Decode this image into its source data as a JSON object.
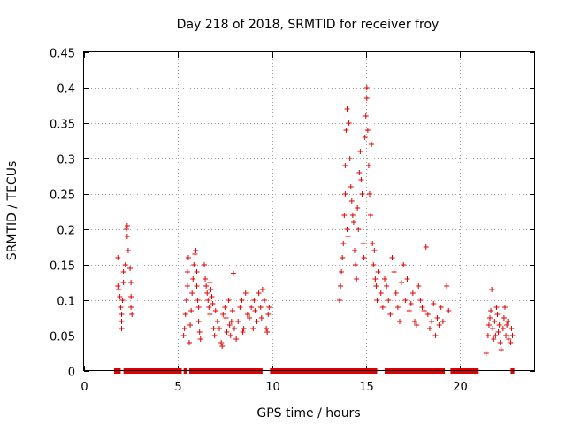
{
  "chart_data": {
    "type": "scatter",
    "title": "Day 218 of 2018, SRMTID for receiver froy",
    "xlabel": "GPS time / hours",
    "ylabel": "SRMTID / TECUs",
    "xlim": [
      0,
      24
    ],
    "ylim": [
      0,
      0.45
    ],
    "xticks": [
      0,
      5,
      10,
      15,
      20
    ],
    "yticks": [
      0,
      0.05,
      0.1,
      0.15,
      0.2,
      0.25,
      0.3,
      0.35,
      0.4,
      0.45
    ],
    "xtick_labels": [
      "0",
      "5",
      "10",
      "15",
      "20"
    ],
    "ytick_labels": [
      "0",
      "0.05",
      "0.1",
      "0.15",
      "0.2",
      "0.25",
      "0.3",
      "0.35",
      "0.4",
      "0.45"
    ],
    "grid": true,
    "marker": "+",
    "color": "#e00000",
    "series": [
      {
        "name": "SRMTID",
        "points": [
          [
            1.8,
            0.16
          ],
          [
            1.8,
            0.12
          ],
          [
            1.85,
            0.115
          ],
          [
            1.9,
            0.105
          ],
          [
            1.95,
            0.09
          ],
          [
            2.0,
            0.08
          ],
          [
            2.0,
            0.07
          ],
          [
            2.0,
            0.06
          ],
          [
            2.05,
            0.1
          ],
          [
            2.1,
            0.125
          ],
          [
            2.1,
            0.14
          ],
          [
            2.2,
            0.15
          ],
          [
            2.25,
            0.2
          ],
          [
            2.3,
            0.205
          ],
          [
            2.3,
            0.19
          ],
          [
            2.35,
            0.17
          ],
          [
            2.45,
            0.145
          ],
          [
            2.5,
            0.125
          ],
          [
            2.5,
            0.105
          ],
          [
            2.5,
            0.09
          ],
          [
            2.55,
            0.08
          ],
          [
            5.3,
            0.05
          ],
          [
            5.35,
            0.06
          ],
          [
            5.4,
            0.08
          ],
          [
            5.45,
            0.1
          ],
          [
            5.5,
            0.12
          ],
          [
            5.5,
            0.14
          ],
          [
            5.55,
            0.16
          ],
          [
            5.6,
            0.04
          ],
          [
            5.65,
            0.065
          ],
          [
            5.7,
            0.085
          ],
          [
            5.75,
            0.11
          ],
          [
            5.8,
            0.13
          ],
          [
            5.85,
            0.15
          ],
          [
            5.9,
            0.165
          ],
          [
            5.95,
            0.17
          ],
          [
            6.0,
            0.14
          ],
          [
            6.0,
            0.12
          ],
          [
            6.05,
            0.1
          ],
          [
            6.1,
            0.09
          ],
          [
            6.1,
            0.07
          ],
          [
            6.15,
            0.055
          ],
          [
            6.2,
            0.045
          ],
          [
            6.4,
            0.15
          ],
          [
            6.45,
            0.13
          ],
          [
            6.5,
            0.12
          ],
          [
            6.55,
            0.11
          ],
          [
            6.6,
            0.1
          ],
          [
            6.65,
            0.09
          ],
          [
            6.7,
            0.08
          ],
          [
            6.7,
            0.125
          ],
          [
            6.75,
            0.115
          ],
          [
            6.8,
            0.105
          ],
          [
            6.85,
            0.095
          ],
          [
            6.9,
            0.06
          ],
          [
            6.95,
            0.05
          ],
          [
            7.0,
            0.085
          ],
          [
            7.1,
            0.07
          ],
          [
            7.2,
            0.06
          ],
          [
            7.3,
            0.04
          ],
          [
            7.35,
            0.035
          ],
          [
            7.4,
            0.08
          ],
          [
            7.5,
            0.09
          ],
          [
            7.55,
            0.075
          ],
          [
            7.6,
            0.055
          ],
          [
            7.7,
            0.1
          ],
          [
            7.75,
            0.065
          ],
          [
            7.8,
            0.05
          ],
          [
            7.85,
            0.07
          ],
          [
            7.9,
            0.085
          ],
          [
            7.95,
            0.138
          ],
          [
            8.0,
            0.06
          ],
          [
            8.1,
            0.045
          ],
          [
            8.2,
            0.07
          ],
          [
            8.3,
            0.09
          ],
          [
            8.4,
            0.1
          ],
          [
            8.45,
            0.055
          ],
          [
            8.5,
            0.06
          ],
          [
            8.6,
            0.11
          ],
          [
            8.7,
            0.08
          ],
          [
            8.8,
            0.075
          ],
          [
            8.9,
            0.09
          ],
          [
            9.0,
            0.06
          ],
          [
            9.05,
            0.1
          ],
          [
            9.1,
            0.085
          ],
          [
            9.2,
            0.07
          ],
          [
            9.3,
            0.11
          ],
          [
            9.4,
            0.09
          ],
          [
            9.45,
            0.075
          ],
          [
            9.5,
            0.115
          ],
          [
            9.6,
            0.1
          ],
          [
            9.7,
            0.06
          ],
          [
            9.75,
            0.055
          ],
          [
            9.8,
            0.08
          ],
          [
            9.85,
            0.09
          ],
          [
            13.6,
            0.1
          ],
          [
            13.65,
            0.12
          ],
          [
            13.7,
            0.14
          ],
          [
            13.75,
            0.16
          ],
          [
            13.8,
            0.18
          ],
          [
            13.85,
            0.22
          ],
          [
            13.9,
            0.25
          ],
          [
            13.9,
            0.29
          ],
          [
            13.95,
            0.34
          ],
          [
            14.0,
            0.37
          ],
          [
            14.0,
            0.2
          ],
          [
            14.05,
            0.19
          ],
          [
            14.1,
            0.35
          ],
          [
            14.15,
            0.3
          ],
          [
            14.2,
            0.26
          ],
          [
            14.25,
            0.24
          ],
          [
            14.3,
            0.22
          ],
          [
            14.35,
            0.21
          ],
          [
            14.4,
            0.17
          ],
          [
            14.45,
            0.15
          ],
          [
            14.5,
            0.13
          ],
          [
            14.55,
            0.23
          ],
          [
            14.6,
            0.2
          ],
          [
            14.65,
            0.28
          ],
          [
            14.7,
            0.31
          ],
          [
            14.75,
            0.27
          ],
          [
            14.8,
            0.25
          ],
          [
            14.85,
            0.18
          ],
          [
            14.9,
            0.16
          ],
          [
            14.95,
            0.33
          ],
          [
            15.0,
            0.36
          ],
          [
            15.05,
            0.4
          ],
          [
            15.05,
            0.385
          ],
          [
            15.1,
            0.34
          ],
          [
            15.15,
            0.29
          ],
          [
            15.2,
            0.25
          ],
          [
            15.25,
            0.22
          ],
          [
            15.3,
            0.32
          ],
          [
            15.35,
            0.18
          ],
          [
            15.4,
            0.15
          ],
          [
            15.45,
            0.17
          ],
          [
            15.5,
            0.13
          ],
          [
            15.55,
            0.12
          ],
          [
            15.6,
            0.1
          ],
          [
            15.65,
            0.14
          ],
          [
            15.8,
            0.11
          ],
          [
            15.9,
            0.09
          ],
          [
            16.0,
            0.13
          ],
          [
            16.1,
            0.12
          ],
          [
            16.2,
            0.1
          ],
          [
            16.3,
            0.08
          ],
          [
            16.4,
            0.16
          ],
          [
            16.5,
            0.14
          ],
          [
            16.6,
            0.11
          ],
          [
            16.7,
            0.09
          ],
          [
            16.8,
            0.07
          ],
          [
            16.9,
            0.125
          ],
          [
            17.0,
            0.15
          ],
          [
            17.1,
            0.1
          ],
          [
            17.2,
            0.13
          ],
          [
            17.3,
            0.085
          ],
          [
            17.4,
            0.095
          ],
          [
            17.5,
            0.11
          ],
          [
            17.6,
            0.07
          ],
          [
            17.7,
            0.065
          ],
          [
            17.8,
            0.12
          ],
          [
            17.9,
            0.1
          ],
          [
            18.0,
            0.09
          ],
          [
            18.1,
            0.085
          ],
          [
            18.2,
            0.175
          ],
          [
            18.3,
            0.08
          ],
          [
            18.4,
            0.06
          ],
          [
            18.5,
            0.07
          ],
          [
            18.6,
            0.095
          ],
          [
            18.7,
            0.05
          ],
          [
            18.8,
            0.075
          ],
          [
            18.9,
            0.065
          ],
          [
            19.0,
            0.09
          ],
          [
            19.1,
            0.07
          ],
          [
            19.3,
            0.12
          ],
          [
            19.4,
            0.085
          ],
          [
            21.4,
            0.025
          ],
          [
            21.5,
            0.05
          ],
          [
            21.55,
            0.065
          ],
          [
            21.6,
            0.075
          ],
          [
            21.65,
            0.085
          ],
          [
            21.7,
            0.115
          ],
          [
            21.75,
            0.06
          ],
          [
            21.8,
            0.045
          ],
          [
            21.85,
            0.07
          ],
          [
            21.9,
            0.05
          ],
          [
            21.95,
            0.09
          ],
          [
            22.0,
            0.08
          ],
          [
            22.05,
            0.055
          ],
          [
            22.1,
            0.065
          ],
          [
            22.15,
            0.04
          ],
          [
            22.2,
            0.03
          ],
          [
            22.3,
            0.06
          ],
          [
            22.35,
            0.075
          ],
          [
            22.4,
            0.09
          ],
          [
            22.45,
            0.05
          ],
          [
            22.5,
            0.065
          ],
          [
            22.55,
            0.07
          ],
          [
            22.6,
            0.045
          ],
          [
            22.7,
            0.04
          ],
          [
            22.75,
            0.06
          ],
          [
            22.8,
            0.05
          ]
        ]
      }
    ],
    "zero_segments": [
      [
        1.6,
        1.95
      ],
      [
        2.1,
        5.2
      ],
      [
        5.3,
        5.5
      ],
      [
        5.6,
        9.5
      ],
      [
        9.9,
        15.6
      ],
      [
        16.0,
        19.2
      ],
      [
        19.5,
        21.0
      ],
      [
        22.7,
        22.9
      ]
    ]
  }
}
